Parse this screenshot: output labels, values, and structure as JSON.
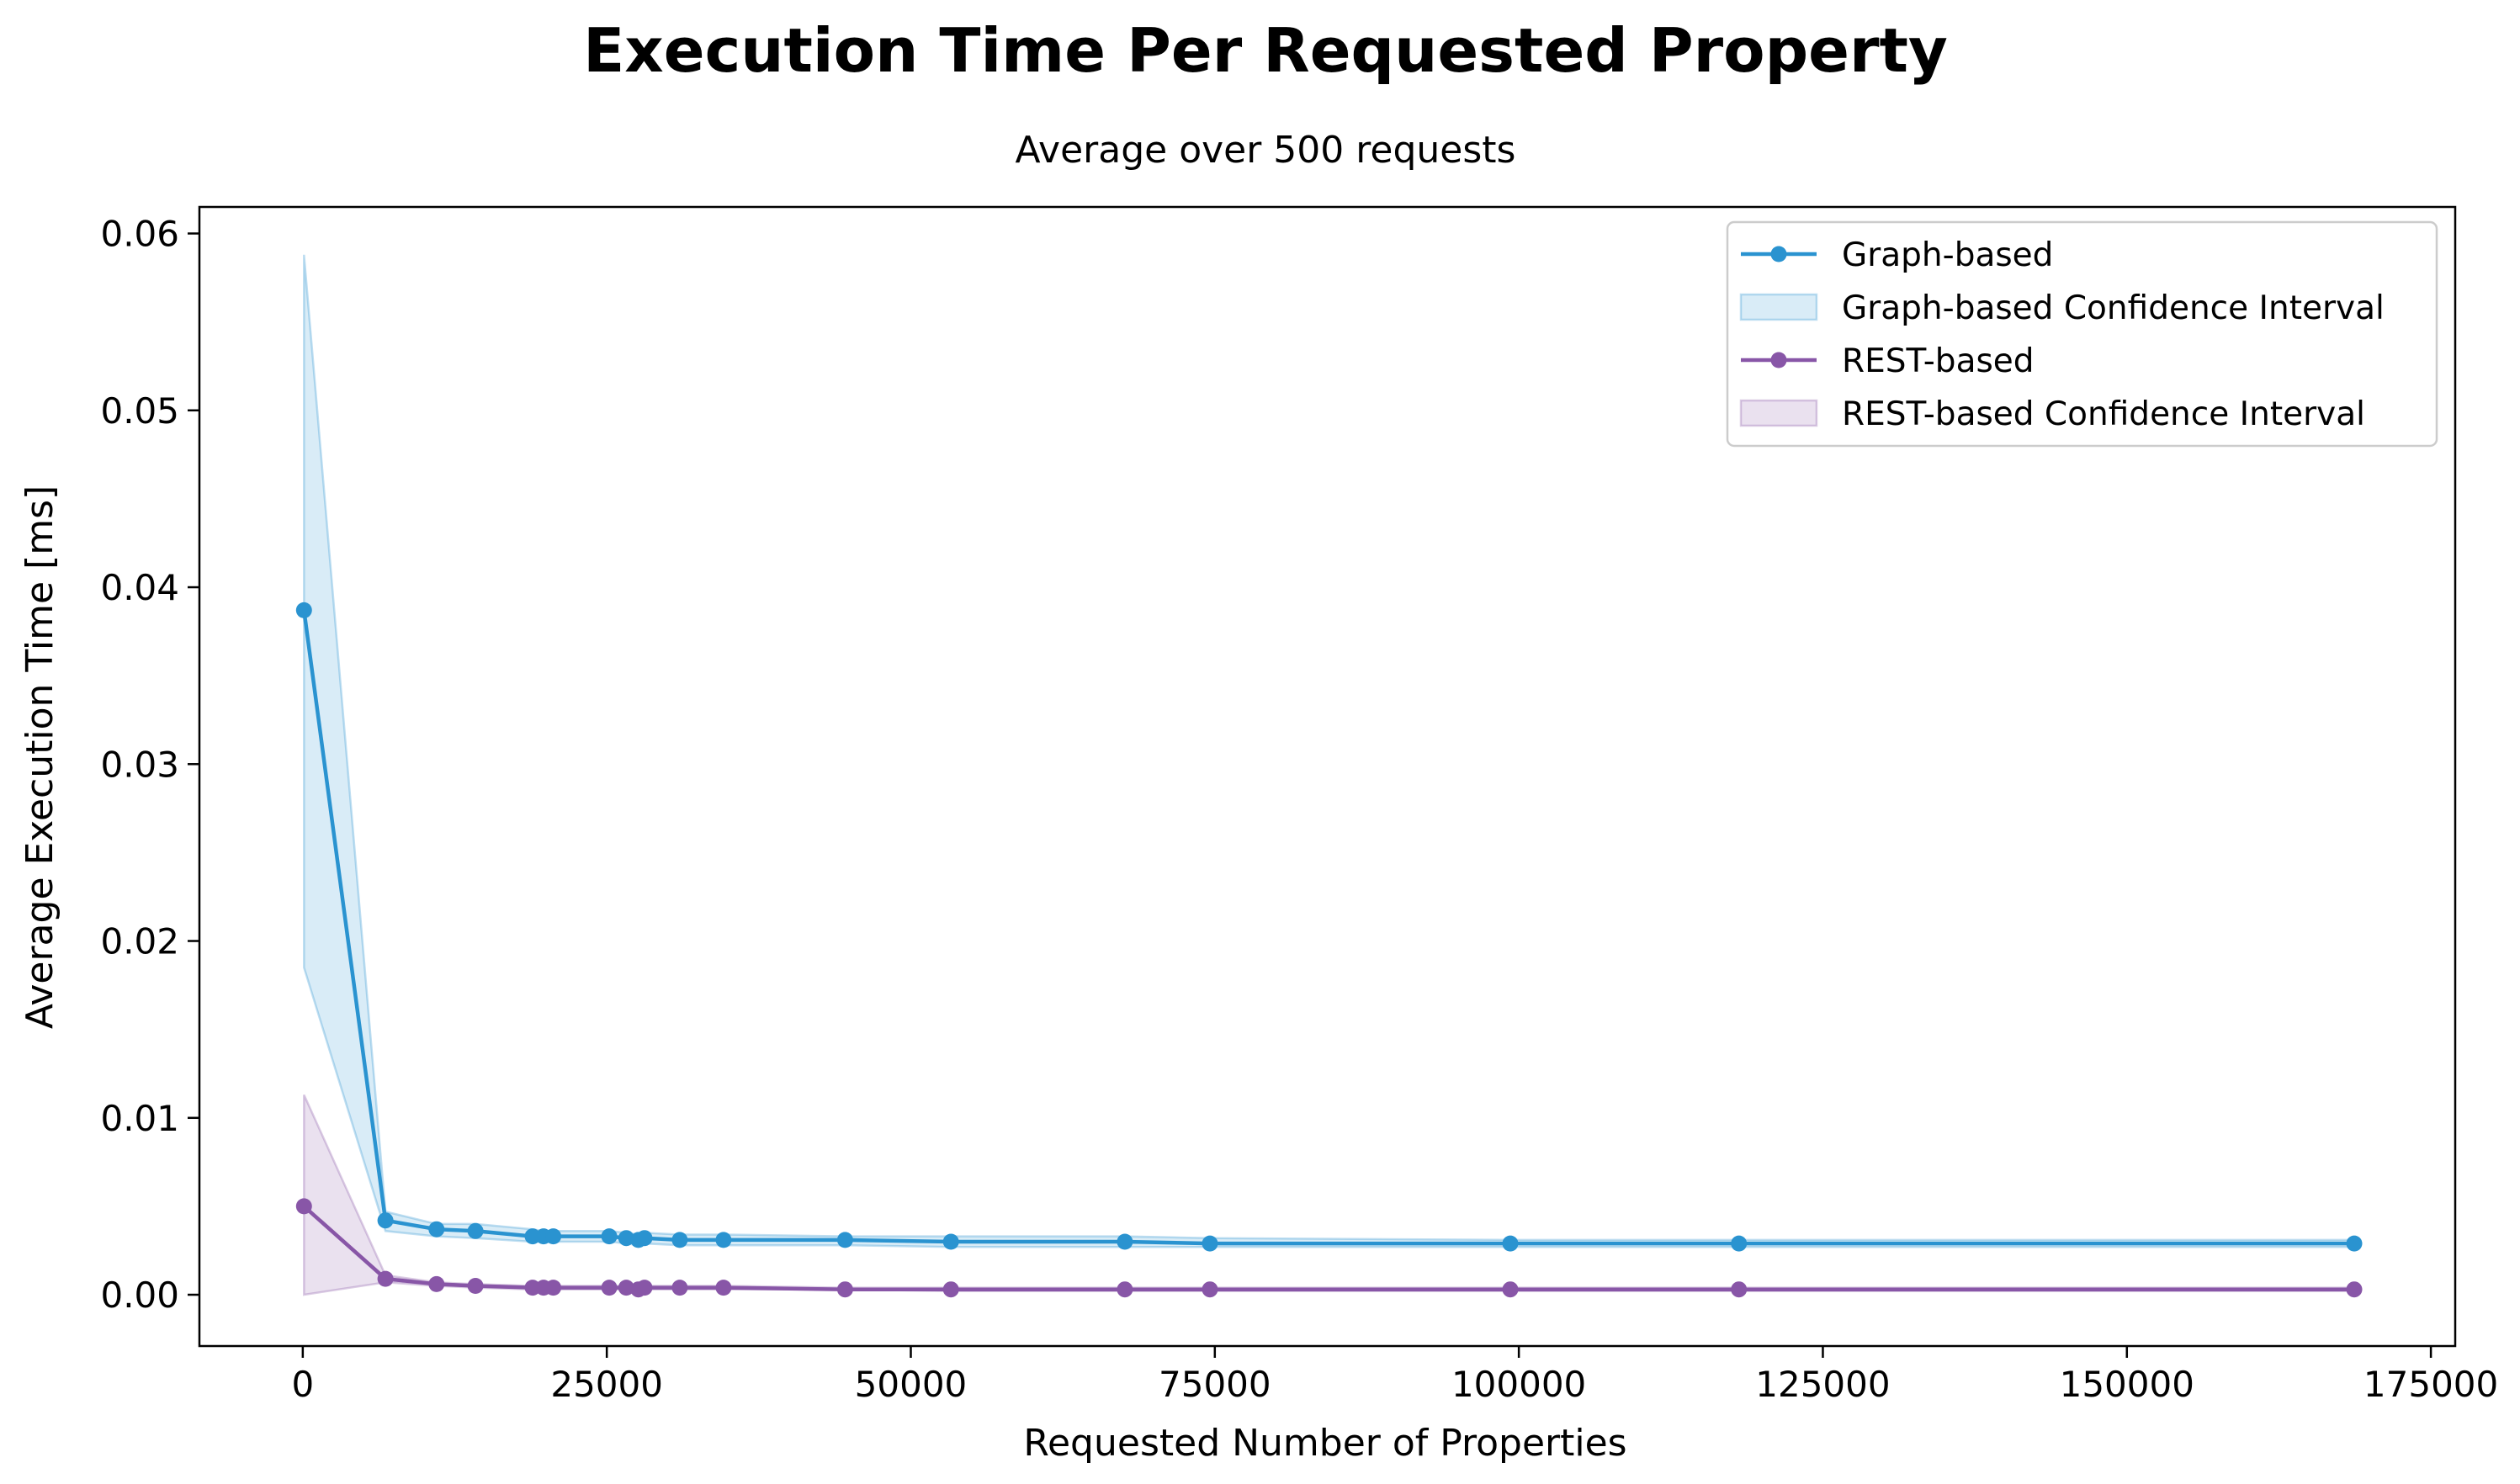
{
  "chart_data": {
    "type": "line",
    "title": "Execution Time Per Requested Property",
    "subtitle": "Average over 500 requests",
    "xlabel": "Requested Number of Properties",
    "ylabel": "Average Execution Time [ms]",
    "xlim": [
      -8500,
      177000
    ],
    "ylim": [
      -0.0029,
      0.0615
    ],
    "xticks": [
      0,
      25000,
      50000,
      75000,
      100000,
      125000,
      150000,
      175000
    ],
    "xtick_labels": [
      "0",
      "25000",
      "50000",
      "75000",
      "100000",
      "125000",
      "150000",
      "175000"
    ],
    "yticks": [
      0.0,
      0.01,
      0.02,
      0.03,
      0.04,
      0.05,
      0.06
    ],
    "ytick_labels": [
      "0.00",
      "0.01",
      "0.02",
      "0.03",
      "0.04",
      "0.05",
      "0.06"
    ],
    "grid": false,
    "legend_position": "top-right",
    "x": [
      100,
      6800,
      11000,
      14200,
      18900,
      19800,
      20600,
      25200,
      26600,
      27600,
      28100,
      31000,
      34600,
      44600,
      53300,
      67600,
      74600,
      99300,
      118100,
      168700
    ],
    "series": [
      {
        "name": "Graph-based",
        "color": "#2a93d0",
        "values": [
          0.0387,
          0.0042,
          0.0037,
          0.0036,
          0.0033,
          0.0033,
          0.0033,
          0.0033,
          0.0032,
          0.0031,
          0.0032,
          0.0031,
          0.0031,
          0.0031,
          0.003,
          0.003,
          0.0029,
          0.0029,
          0.0029,
          0.0029
        ],
        "ci_lower": [
          0.0185,
          0.0036,
          0.0033,
          0.0032,
          0.003,
          0.003,
          0.003,
          0.003,
          0.0029,
          0.0028,
          0.0029,
          0.0028,
          0.0028,
          0.0028,
          0.0027,
          0.0027,
          0.0027,
          0.0027,
          0.0027,
          0.0027
        ],
        "ci_upper": [
          0.0588,
          0.0047,
          0.004,
          0.004,
          0.0037,
          0.0036,
          0.0036,
          0.0036,
          0.0035,
          0.0034,
          0.0035,
          0.0034,
          0.0034,
          0.0033,
          0.0033,
          0.0033,
          0.0032,
          0.0031,
          0.0031,
          0.0031
        ]
      },
      {
        "name": "REST-based",
        "color": "#8856a7",
        "values": [
          0.005,
          0.0009,
          0.0006,
          0.0005,
          0.0004,
          0.0004,
          0.0004,
          0.0004,
          0.0004,
          0.0003,
          0.0004,
          0.0004,
          0.0004,
          0.0003,
          0.0003,
          0.0003,
          0.0003,
          0.0003,
          0.0003,
          0.0003
        ],
        "ci_lower": [
          0.0,
          0.0007,
          0.0005,
          0.0004,
          0.0003,
          0.0003,
          0.0003,
          0.0003,
          0.0003,
          0.0003,
          0.0003,
          0.0003,
          0.0003,
          0.0003,
          0.0002,
          0.0002,
          0.0002,
          0.0002,
          0.0002,
          0.0002
        ],
        "ci_upper": [
          0.0113,
          0.0011,
          0.0007,
          0.0006,
          0.0005,
          0.0005,
          0.0005,
          0.0005,
          0.0005,
          0.0004,
          0.0005,
          0.0005,
          0.0005,
          0.0004,
          0.0004,
          0.0004,
          0.0004,
          0.0004,
          0.0004,
          0.0004
        ]
      }
    ],
    "legend": [
      {
        "label": "Graph-based",
        "kind": "line",
        "color": "#2a93d0"
      },
      {
        "label": "Graph-based Confidence Interval",
        "kind": "band",
        "color": "#2a93d0"
      },
      {
        "label": "REST-based",
        "kind": "line",
        "color": "#8856a7"
      },
      {
        "label": "REST-based Confidence Interval",
        "kind": "band",
        "color": "#8856a7"
      }
    ]
  }
}
